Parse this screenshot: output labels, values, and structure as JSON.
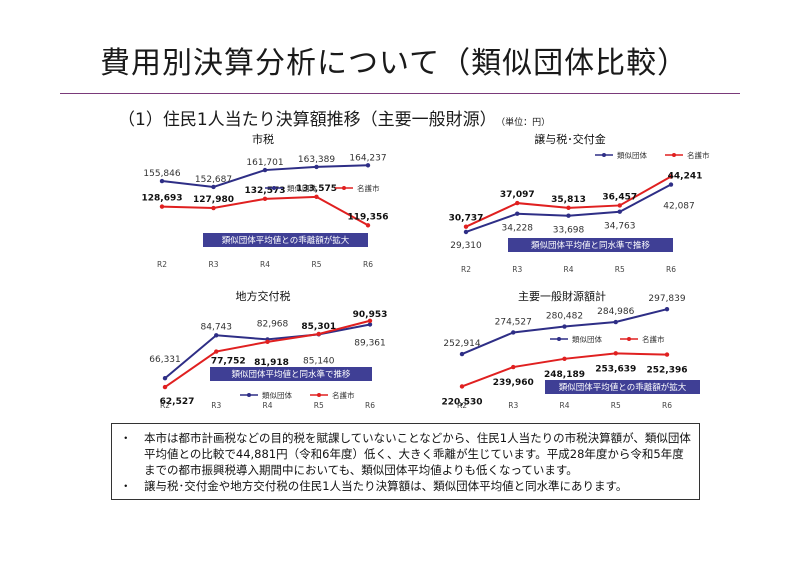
{
  "page": {
    "title": "費用別決算分析について（類似団体比較）",
    "subtitle": "（1）住民1人当たり決算額推移（主要一般財源）",
    "unit": "（単位：円）"
  },
  "colors": {
    "similar": "#2e2e86",
    "nago": "#e02020",
    "annotation": "#3f3f95",
    "rule": "#7a3a7a"
  },
  "chart_data": [
    {
      "type": "line",
      "title": "市税",
      "categories": [
        "R2",
        "R3",
        "R4",
        "R5",
        "R6"
      ],
      "series": [
        {
          "name": "類似団体",
          "values": [
            155846,
            152687,
            161701,
            163389,
            164237
          ],
          "labels": [
            "155,846",
            "152,687",
            "161,701",
            "163,389",
            "164,237"
          ]
        },
        {
          "name": "名護市",
          "values": [
            128693,
            127980,
            132573,
            133575,
            119356
          ],
          "labels": [
            "128,693",
            "127,980",
            "132,573",
            "133,575",
            "119,356"
          ]
        }
      ],
      "annotation": "類似団体平均値との乖離額が拡大"
    },
    {
      "type": "line",
      "title": "譲与税･交付金",
      "categories": [
        "R2",
        "R3",
        "R4",
        "R5",
        "R6"
      ],
      "series": [
        {
          "name": "類似団体",
          "values": [
            29310,
            34228,
            33698,
            34763,
            42087
          ],
          "labels": [
            "29,310",
            "34,228",
            "33,698",
            "34,763",
            "42,087"
          ]
        },
        {
          "name": "名護市",
          "values": [
            30737,
            37097,
            35813,
            36457,
            44241
          ],
          "labels": [
            "30,737",
            "37,097",
            "35,813",
            "36,457",
            "44,241"
          ]
        }
      ],
      "annotation": "類似団体平均値と同水準で推移"
    },
    {
      "type": "line",
      "title": "地方交付税",
      "categories": [
        "R2",
        "R3",
        "R4",
        "R5",
        "R6"
      ],
      "series": [
        {
          "name": "類似団体",
          "values": [
            66331,
            84743,
            82968,
            85140,
            89361
          ],
          "labels": [
            "66,331",
            "84,743",
            "82,968",
            "85,140",
            "89,361"
          ]
        },
        {
          "name": "名護市",
          "values": [
            62527,
            77752,
            81918,
            85301,
            90953
          ],
          "labels": [
            "62,527",
            "77,752",
            "81,918",
            "85,301",
            "90,953"
          ]
        }
      ],
      "annotation": "類似団体平均値と同水準で推移"
    },
    {
      "type": "line",
      "title": "主要一般財源額計",
      "categories": [
        "R2",
        "R3",
        "R4",
        "R5",
        "R6"
      ],
      "series": [
        {
          "name": "類似団体",
          "values": [
            252914,
            274527,
            280482,
            284986,
            297839
          ],
          "labels": [
            "252,914",
            "274,527",
            "280,482",
            "284,986",
            "297,839"
          ]
        },
        {
          "name": "名護市",
          "values": [
            220530,
            239960,
            248189,
            253639,
            252396
          ],
          "labels": [
            "220,530",
            "239,960",
            "248,189",
            "253,639",
            "252,396"
          ]
        }
      ],
      "annotation": "類似団体平均値との乖離額が拡大"
    }
  ],
  "notes": [
    {
      "bullet": "・",
      "text": "本市は都市計画税などの目的税を賦課していないことなどから、住民1人当たりの市税決算額が、類似団体平均値との比較で44,881円（令和6年度）低く、大きく乖離が生じています。平成28年度から令和5年度までの都市振興税導入期間中においても、類似団体平均値よりも低くなっています。"
    },
    {
      "bullet": "・",
      "text": "譲与税･交付金や地方交付税の住民1人当たり決算額は、類似団体平均値と同水準にあります。"
    }
  ]
}
